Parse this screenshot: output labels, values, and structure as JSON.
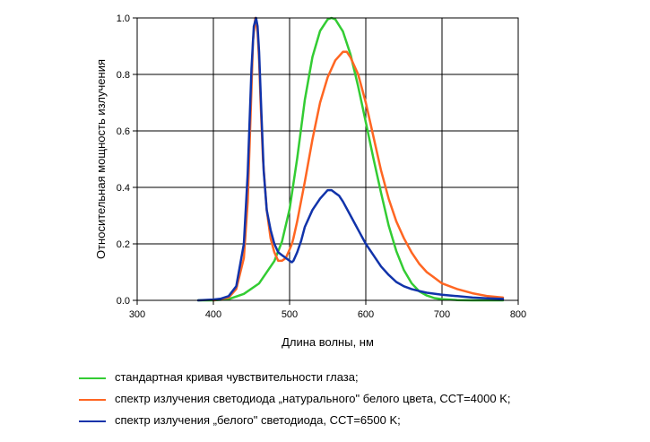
{
  "chart_data": {
    "type": "line",
    "xlabel": "Длина волны, нм",
    "ylabel": "Относительная мощность излучения",
    "xlim": [
      300,
      800
    ],
    "ylim": [
      0.0,
      1.0
    ],
    "xticks": [
      "300",
      "400",
      "500",
      "600",
      "700",
      "800"
    ],
    "yticks": [
      "0.0",
      "0.2",
      "0.4",
      "0.6",
      "0.8",
      "1.0"
    ],
    "grid": true,
    "legend_position": "bottom",
    "series": [
      {
        "name": "стандартная кривая чувствительности глаза;",
        "color": "#33cc33",
        "x": [
          380,
          400,
          420,
          440,
          460,
          480,
          490,
          500,
          510,
          520,
          530,
          540,
          550,
          555,
          560,
          570,
          580,
          590,
          600,
          610,
          620,
          630,
          640,
          650,
          660,
          670,
          680,
          690,
          700,
          720,
          740,
          760,
          780
        ],
        "y": [
          0.0,
          0.0,
          0.004,
          0.023,
          0.06,
          0.139,
          0.208,
          0.323,
          0.503,
          0.71,
          0.862,
          0.954,
          0.995,
          1.0,
          0.995,
          0.952,
          0.87,
          0.757,
          0.631,
          0.503,
          0.381,
          0.265,
          0.175,
          0.107,
          0.061,
          0.032,
          0.017,
          0.008,
          0.004,
          0.001,
          0.0,
          0.0,
          0.0
        ]
      },
      {
        "name": "спектр излучения светодиода „натурального\" белого цвета, CCT=4000 K;",
        "color": "#ff6622",
        "x": [
          400,
          420,
          430,
          440,
          445,
          450,
          452,
          455,
          458,
          460,
          462,
          465,
          470,
          475,
          480,
          485,
          490,
          495,
          500,
          503,
          505,
          510,
          520,
          530,
          540,
          550,
          560,
          570,
          575,
          580,
          590,
          600,
          610,
          620,
          630,
          640,
          650,
          660,
          670,
          680,
          690,
          700,
          720,
          740,
          760,
          780
        ],
        "y": [
          0.0,
          0.01,
          0.04,
          0.15,
          0.35,
          0.75,
          0.92,
          1.0,
          0.95,
          0.85,
          0.7,
          0.5,
          0.32,
          0.22,
          0.17,
          0.14,
          0.14,
          0.15,
          0.18,
          0.2,
          0.22,
          0.28,
          0.42,
          0.57,
          0.7,
          0.79,
          0.85,
          0.88,
          0.88,
          0.86,
          0.8,
          0.7,
          0.58,
          0.46,
          0.36,
          0.28,
          0.22,
          0.17,
          0.13,
          0.1,
          0.08,
          0.06,
          0.04,
          0.025,
          0.015,
          0.01
        ]
      },
      {
        "name": "спектр излучения „белого\" светодиода, CCT=6500 K;",
        "color": "#1133aa",
        "x": [
          380,
          400,
          410,
          420,
          430,
          440,
          445,
          450,
          453,
          456,
          458,
          460,
          463,
          466,
          470,
          475,
          480,
          485,
          490,
          495,
          500,
          503,
          505,
          510,
          515,
          520,
          530,
          540,
          550,
          555,
          560,
          565,
          570,
          580,
          590,
          600,
          610,
          620,
          630,
          640,
          650,
          660,
          670,
          680,
          700,
          720,
          740,
          760,
          780
        ],
        "y": [
          0.0,
          0.003,
          0.006,
          0.015,
          0.05,
          0.2,
          0.45,
          0.82,
          0.97,
          1.0,
          0.97,
          0.88,
          0.66,
          0.46,
          0.32,
          0.25,
          0.2,
          0.17,
          0.16,
          0.15,
          0.14,
          0.135,
          0.14,
          0.17,
          0.21,
          0.26,
          0.32,
          0.36,
          0.39,
          0.39,
          0.38,
          0.37,
          0.35,
          0.3,
          0.25,
          0.2,
          0.16,
          0.12,
          0.09,
          0.065,
          0.05,
          0.04,
          0.033,
          0.027,
          0.02,
          0.015,
          0.01,
          0.007,
          0.005
        ]
      }
    ]
  }
}
